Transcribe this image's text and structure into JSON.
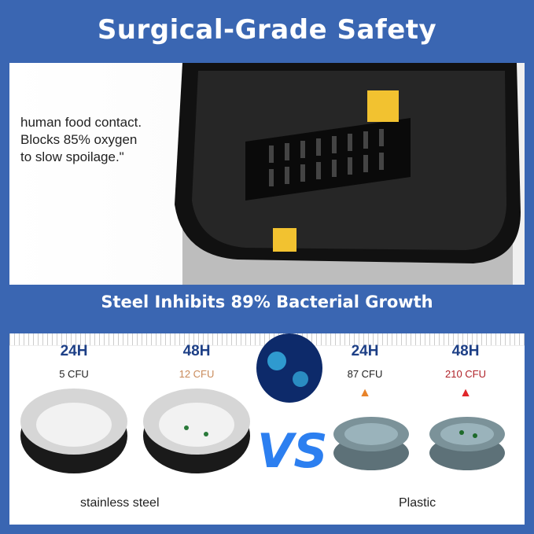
{
  "header": {
    "title": "Surgical-Grade Safety"
  },
  "upper": {
    "quote_lines": [
      "human food contact.",
      "Blocks 85% oxygen",
      "to slow spoilage.\""
    ]
  },
  "band": {
    "title": "Steel Inhibits 89% Bacterial Growth"
  },
  "comparison": {
    "steel": [
      {
        "time": "24H",
        "cfu": "5 CFU",
        "color": "#222222",
        "arrow": "#2fae4a"
      },
      {
        "time": "48H",
        "cfu": "12 CFU",
        "color": "#c98a5a",
        "arrow": "#2fae4a"
      }
    ],
    "plastic": [
      {
        "time": "24H",
        "cfu": "87 CFU",
        "color": "#222222",
        "arrow": "#e8832a"
      },
      {
        "time": "48H",
        "cfu": "210 CFU",
        "color": "#b0232a",
        "arrow": "#e0262a"
      }
    ],
    "steel_label": "stainless steel",
    "plastic_label": "Plastic",
    "vs": "VS"
  },
  "colors": {
    "frame": "#3a66b2",
    "heading": "#1d3f86"
  }
}
